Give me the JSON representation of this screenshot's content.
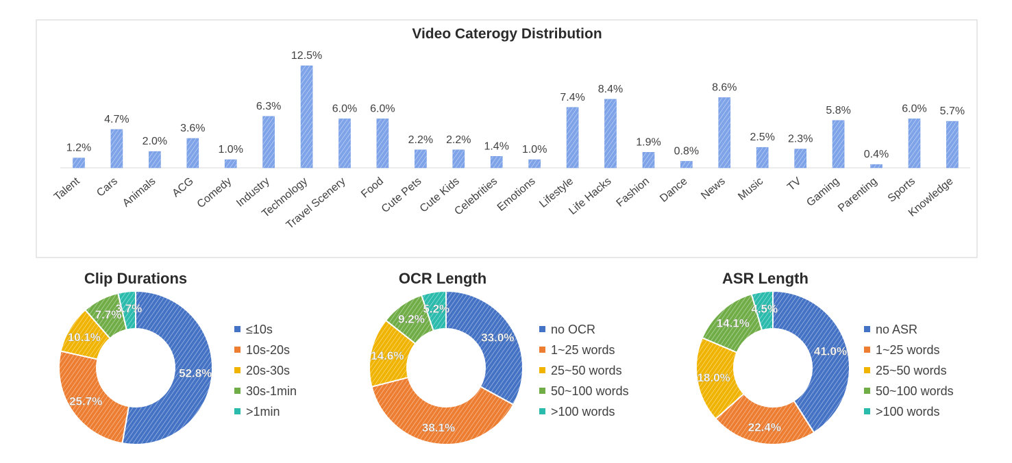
{
  "chart_data": [
    {
      "type": "bar",
      "title": "Video Caterogy Distribution",
      "categories": [
        "Talent",
        "Cars",
        "Animals",
        "ACG",
        "Comedy",
        "Industry",
        "Technology",
        "Travel Scenery",
        "Food",
        "Cute Pets",
        "Cute Kids",
        "Celebrities",
        "Emotions",
        "Lifestyle",
        "Life Hacks",
        "Fashion",
        "Dance",
        "News",
        "Music",
        "TV",
        "Gaming",
        "Parenting",
        "Sports",
        "Knowledge"
      ],
      "values": [
        1.2,
        4.7,
        2.0,
        3.6,
        1.0,
        6.3,
        12.5,
        6.0,
        6.0,
        2.2,
        2.2,
        1.4,
        1.0,
        7.4,
        8.4,
        1.9,
        0.8,
        8.6,
        2.5,
        2.3,
        5.8,
        0.4,
        6.0,
        5.7
      ],
      "labels": [
        "1.2%",
        "4.7%",
        "2.0%",
        "3.6%",
        "1.0%",
        "6.3%",
        "12.5%",
        "6.0%",
        "6.0%",
        "2.2%",
        "2.2%",
        "1.4%",
        "1.0%",
        "7.4%",
        "8.4%",
        "1.9%",
        "0.8%",
        "8.6%",
        "2.5%",
        "2.3%",
        "5.8%",
        "0.4%",
        "6.0%",
        "5.7%"
      ],
      "unit": "%",
      "color": "#7ea3e8",
      "grid": false,
      "legend": "none"
    },
    {
      "type": "pie",
      "subtype": "donut",
      "title": "Clip Durations",
      "categories": [
        "≤10s",
        "10s-20s",
        "20s-30s",
        "30s-1min",
        ">1min"
      ],
      "values": [
        52.8,
        25.7,
        10.1,
        7.7,
        3.7
      ],
      "labels": [
        "52.8%",
        "25.7%",
        "10.1%",
        "7.7%",
        "3.7%"
      ],
      "colors": [
        "#4472c4",
        "#ed7d31",
        "#f0b400",
        "#70ad47",
        "#2bbbad"
      ],
      "legend": "right"
    },
    {
      "type": "pie",
      "subtype": "donut",
      "title": "OCR Length",
      "categories": [
        "no OCR",
        "1~25 words",
        "25~50 words",
        "50~100 words",
        ">100 words"
      ],
      "values": [
        33.0,
        38.1,
        14.6,
        9.2,
        5.2
      ],
      "labels": [
        "33.0%",
        "38.1%",
        "14.6%",
        "9.2%",
        "5.2%"
      ],
      "colors": [
        "#4472c4",
        "#ed7d31",
        "#f0b400",
        "#70ad47",
        "#2bbbad"
      ],
      "legend": "right"
    },
    {
      "type": "pie",
      "subtype": "donut",
      "title": "ASR Length",
      "categories": [
        "no ASR",
        "1~25 words",
        "25~50 words",
        "50~100 words",
        ">100 words"
      ],
      "values": [
        41.0,
        22.4,
        18.0,
        14.1,
        4.5
      ],
      "labels": [
        "41.0%",
        "22.4%",
        "18.0%",
        "14.1%",
        "4.5%"
      ],
      "colors": [
        "#4472c4",
        "#ed7d31",
        "#f0b400",
        "#70ad47",
        "#2bbbad"
      ],
      "legend": "right"
    }
  ]
}
